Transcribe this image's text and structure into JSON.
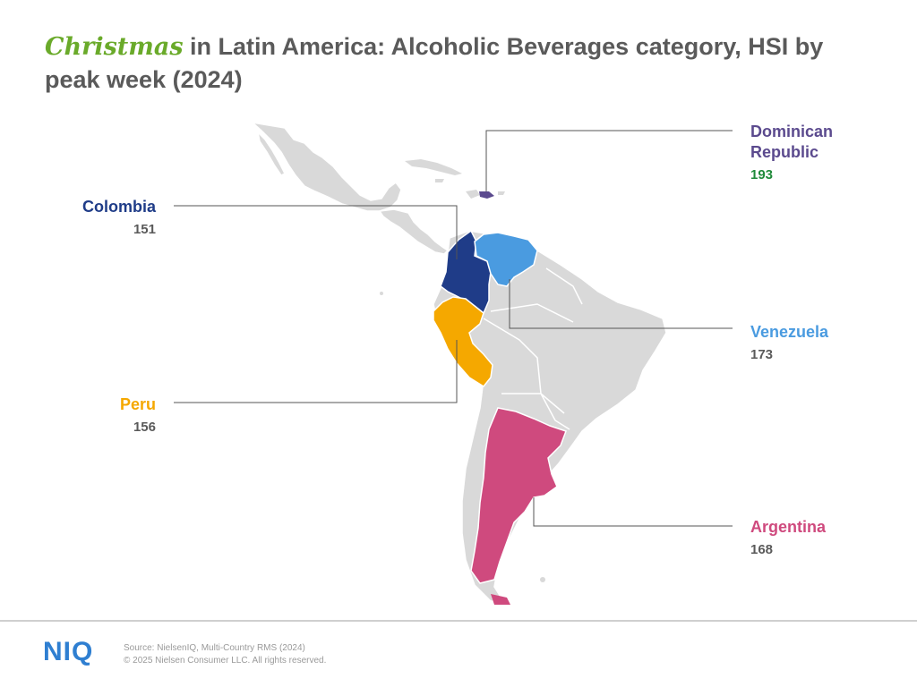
{
  "title": {
    "accent": "Christmas",
    "rest": " in Latin America:  Alcoholic Beverages category, HSI by peak week (2024)"
  },
  "colors": {
    "land": "#d9d9d9",
    "colombia": "#1f3c88",
    "venezuela": "#4a9be0",
    "peru": "#f5a800",
    "argentina": "#cf4a7e",
    "dominican_republic": "#5b4a8e",
    "value_highlight": "#1f8a3a"
  },
  "callouts": {
    "dominican_republic": {
      "name_line1": "Dominican",
      "name_line2": "Republic",
      "value": "193"
    },
    "colombia": {
      "name": "Colombia",
      "value": "151"
    },
    "venezuela": {
      "name": "Venezuela",
      "value": "173"
    },
    "peru": {
      "name": "Peru",
      "value": "156"
    },
    "argentina": {
      "name": "Argentina",
      "value": "168"
    }
  },
  "footer": {
    "logo": "NIQ",
    "source": "Source: NielsenIQ, Multi-Country RMS (2024)",
    "copyright": "© 2025 Nielsen Consumer LLC. All rights reserved."
  }
}
